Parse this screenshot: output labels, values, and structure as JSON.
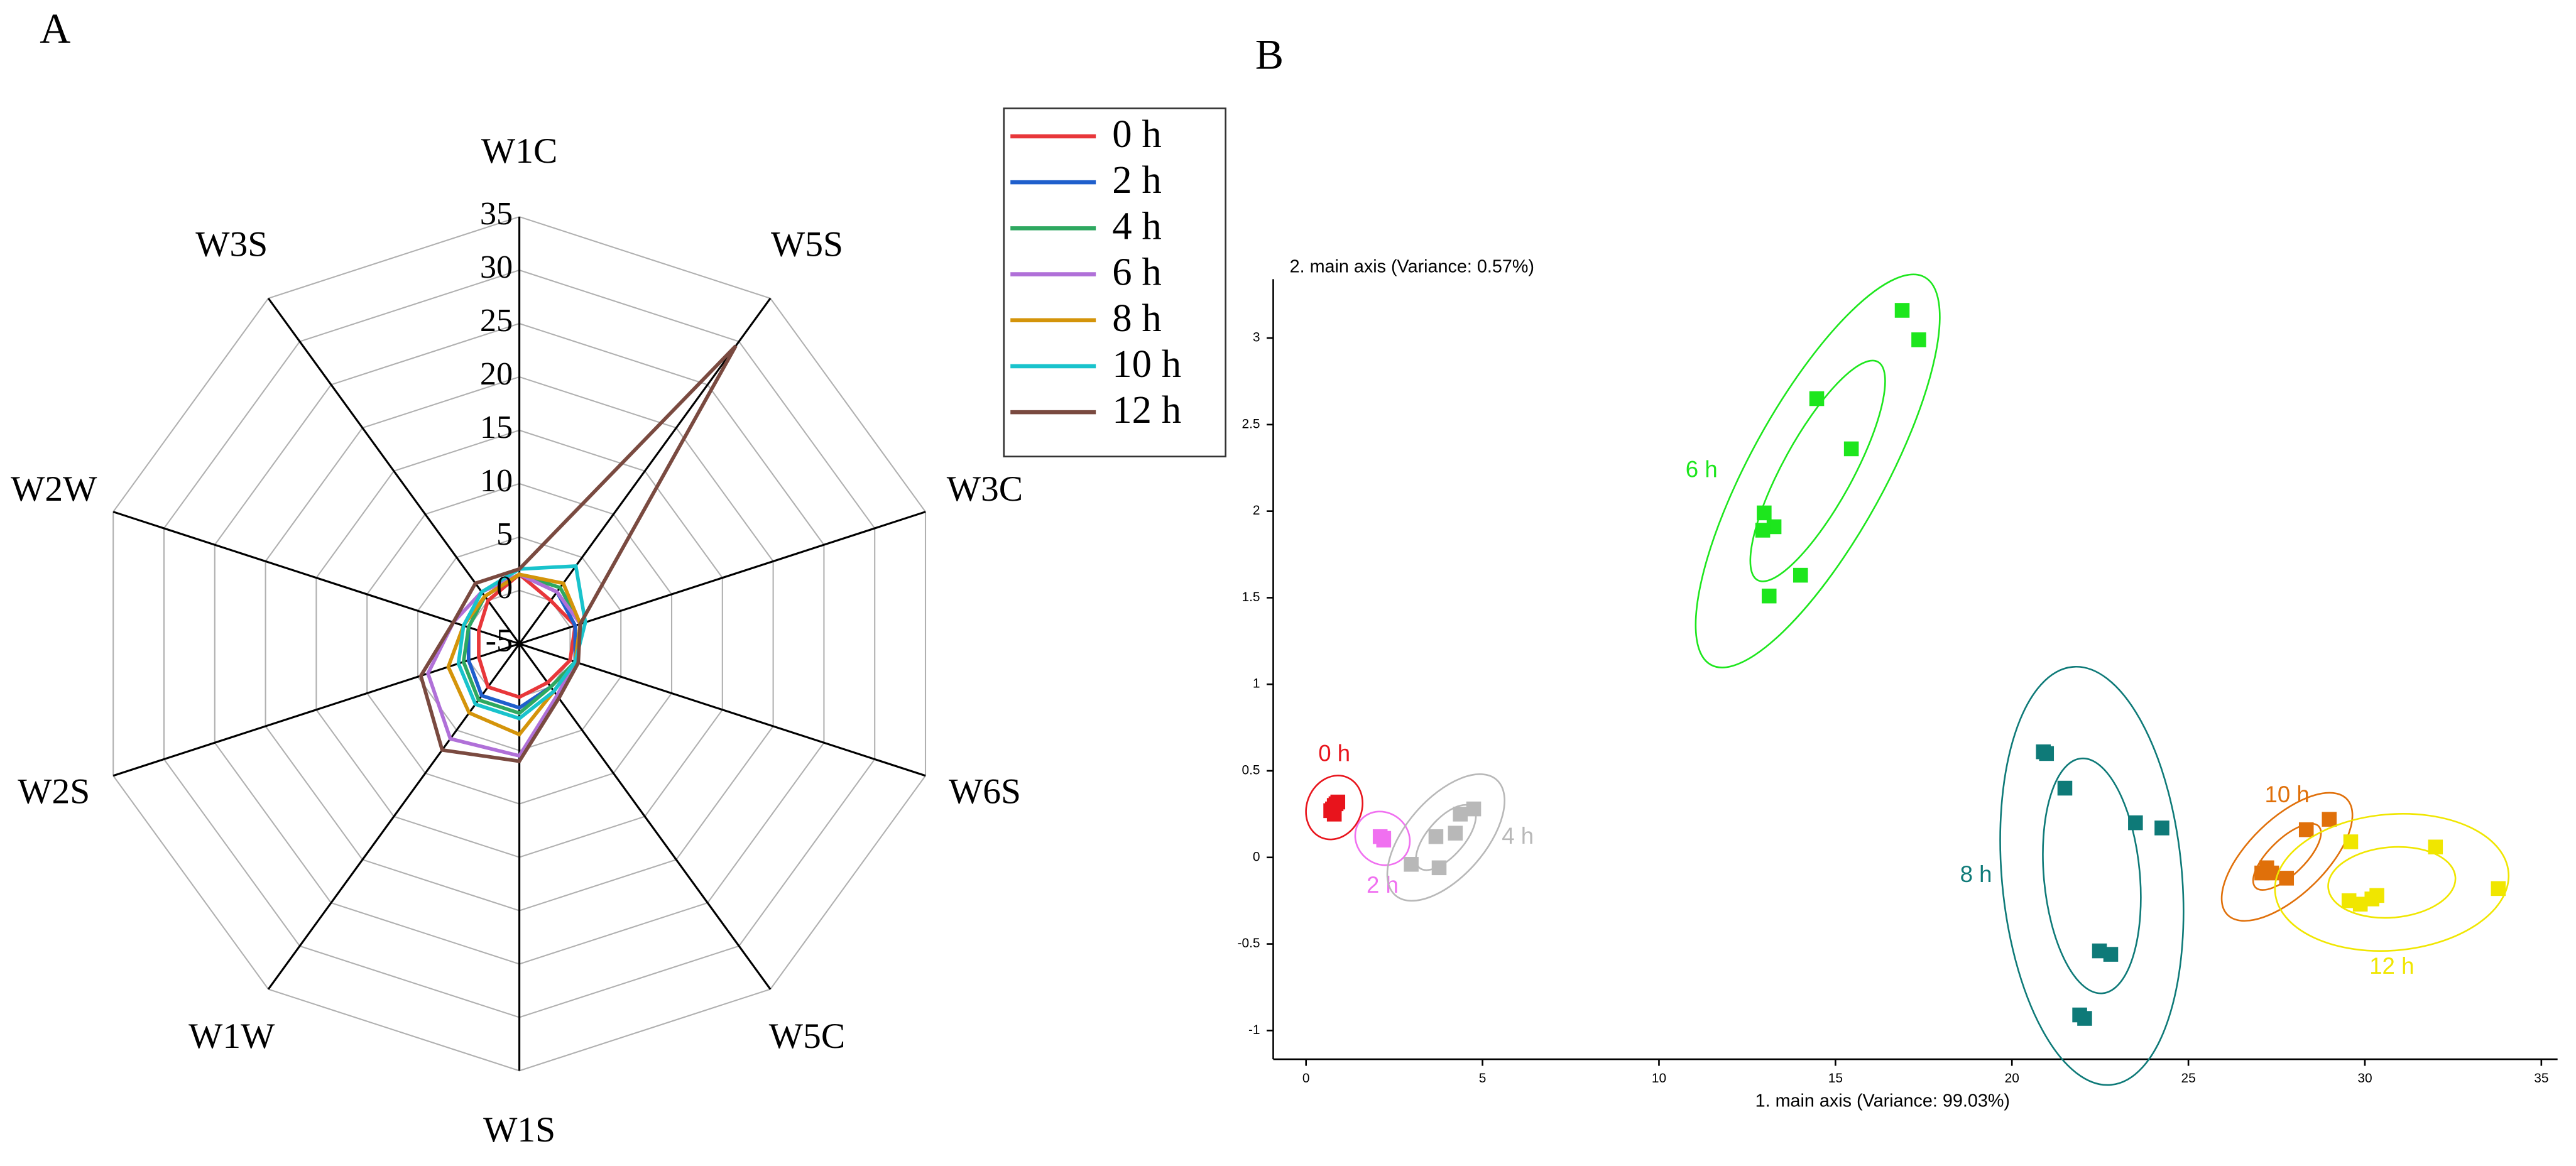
{
  "chart_data": [
    {
      "type": "radar",
      "label": "A",
      "categories": [
        "W1C",
        "W5S",
        "W3C",
        "W6S",
        "W5C",
        "W1S",
        "W1W",
        "W2S",
        "W2W",
        "W3S"
      ],
      "rlim": [
        -5,
        35
      ],
      "rticks": [
        -5,
        0,
        5,
        10,
        15,
        20,
        25,
        30,
        35
      ],
      "legend": "right",
      "series": [
        {
          "name": "0 h",
          "color": "#e8373a",
          "values": [
            1.5,
            0,
            0.5,
            0,
            -0.5,
            0,
            0,
            -1,
            -1,
            0
          ]
        },
        {
          "name": "2 h",
          "color": "#1f5fcc",
          "values": [
            1.5,
            1,
            0.5,
            0.5,
            0,
            1,
            1,
            0,
            0,
            0.5
          ]
        },
        {
          "name": "4 h",
          "color": "#2ea860",
          "values": [
            1.5,
            1.5,
            1,
            0.5,
            0,
            1.5,
            1.5,
            0.5,
            0,
            0.5
          ]
        },
        {
          "name": "6 h",
          "color": "#b070d8",
          "values": [
            1.5,
            1,
            1,
            0.5,
            1,
            5.5,
            6,
            4,
            1.5,
            1
          ]
        },
        {
          "name": "8 h",
          "color": "#d4940a",
          "values": [
            1.5,
            2,
            1,
            0.5,
            0.5,
            3.5,
            3,
            2,
            0.5,
            0.5
          ]
        },
        {
          "name": "10 h",
          "color": "#19c3cc",
          "values": [
            2,
            4,
            1.5,
            0.5,
            0.5,
            2,
            2,
            1,
            0.5,
            1
          ]
        },
        {
          "name": "12 h",
          "color": "#7a4a40",
          "values": [
            2,
            29.5,
            1,
            0.8,
            1.3,
            6,
            7.3,
            4.7,
            1.5,
            2
          ]
        }
      ]
    },
    {
      "type": "scatter",
      "label": "B",
      "xlabel": "1. main axis (Variance: 99.03%)",
      "ylabel": "2. main axis (Variance: 0.57%)",
      "xlim": [
        -0.93,
        35.46
      ],
      "ylim": [
        -1.166,
        3.34
      ],
      "xticks": [
        0,
        5,
        10,
        15,
        20,
        25,
        30,
        35
      ],
      "yticks": [
        -1,
        -0.5,
        0,
        0.5,
        1,
        1.5,
        2,
        2.5,
        3
      ],
      "series": [
        {
          "name": "0 h",
          "color": "#e8141c",
          "label_side": "top",
          "x": [
            0.8,
            0.9,
            0.7,
            0.8,
            0.75,
            0.85
          ],
          "y": [
            0.3,
            0.32,
            0.27,
            0.25,
            0.28,
            0.31
          ]
        },
        {
          "name": "2 h",
          "color": "#f070f0",
          "label_side": "bottom",
          "x": [
            2.1,
            2.2,
            2.2
          ],
          "y": [
            0.12,
            0.1,
            0.11
          ]
        },
        {
          "name": "4 h",
          "color": "#b8b8b8",
          "label_side": "right",
          "x": [
            2.98,
            3.68,
            3.77,
            4.23,
            4.37,
            4.75
          ],
          "y": [
            -0.04,
            0.12,
            -0.06,
            0.14,
            0.25,
            0.28
          ]
        },
        {
          "name": "6 h",
          "color": "#1de61d",
          "label_side": "left",
          "x": [
            16.89,
            17.36,
            14.47,
            15.45,
            12.98,
            13.26,
            12.94,
            14.01,
            13.12
          ],
          "y": [
            3.16,
            2.99,
            2.65,
            2.36,
            1.99,
            1.91,
            1.89,
            1.63,
            1.51
          ]
        },
        {
          "name": "8 h",
          "color": "#0e7a78",
          "label_side": "left",
          "x": [
            20.89,
            20.98,
            21.5,
            23.5,
            24.25,
            22.48,
            22.8,
            21.92,
            22.06
          ],
          "y": [
            0.61,
            0.6,
            0.4,
            0.2,
            0.17,
            -0.54,
            -0.56,
            -0.91,
            -0.93
          ]
        },
        {
          "name": "10 h",
          "color": "#e0700a",
          "label_side": "top",
          "x": [
            28.99,
            28.34,
            27.22,
            27.08,
            27.78,
            27.36
          ],
          "y": [
            0.22,
            0.16,
            -0.06,
            -0.09,
            -0.12,
            -0.09
          ]
        },
        {
          "name": "12 h",
          "color": "#f0e600",
          "label_side": "bottom",
          "x": [
            29.6,
            32.0,
            33.78,
            29.55,
            29.87,
            30.2,
            30.34
          ],
          "y": [
            0.09,
            0.06,
            -0.18,
            -0.25,
            -0.27,
            -0.24,
            -0.22
          ]
        }
      ]
    }
  ]
}
